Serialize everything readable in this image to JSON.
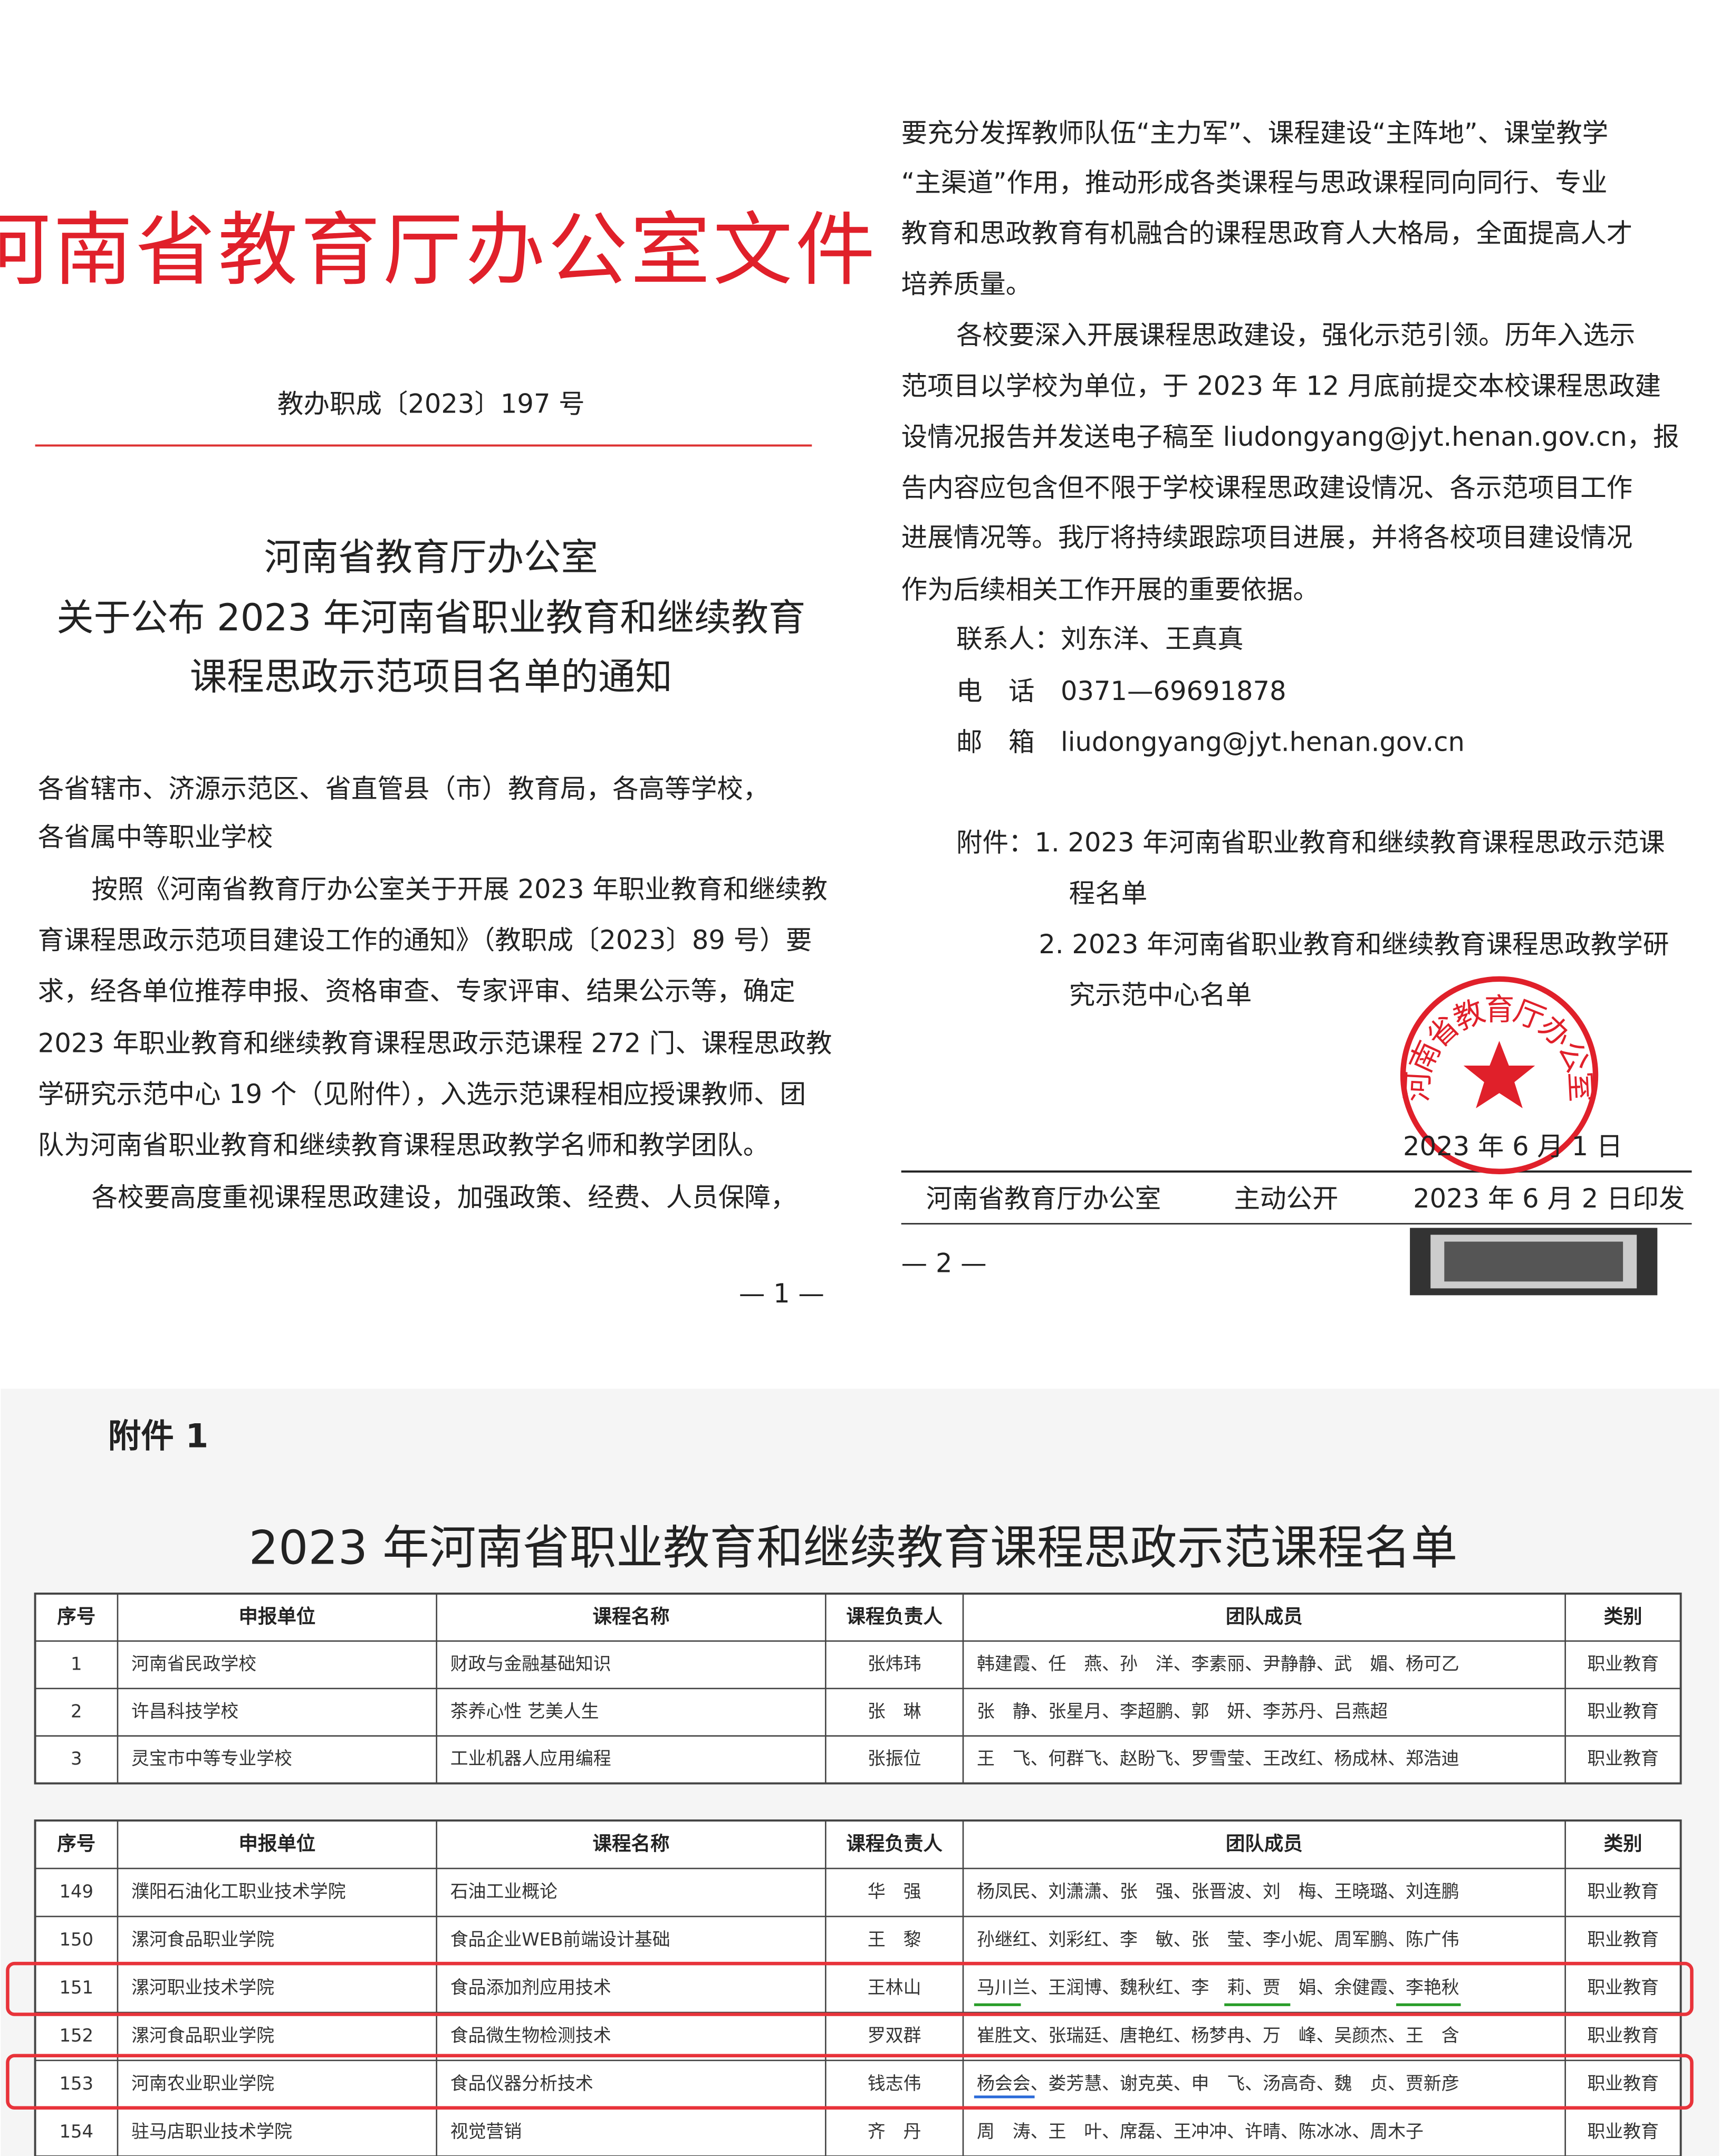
{
  "left_page": {
    "masthead": "河南省教育厅办公室文件",
    "doc_number": "教办职成〔2023〕197 号",
    "title": [
      "河南省教育厅办公室",
      "关于公布 2023 年河南省职业教育和继续教育",
      "课程思政示范项目名单的通知"
    ],
    "body": [
      "各省辖市、济源示范区、省直管县（市）教育局，各高等学校，",
      "各省属中等职业学校",
      "按照《河南省教育厅办公室关于开展 2023 年职业教育和继续教",
      "育课程思政示范项目建设工作的通知》（教职成〔2023〕89 号）要",
      "求，经各单位推荐申报、资格审查、专家评审、结果公示等，确定",
      "2023 年职业教育和继续教育课程思政示范课程 272 门、课程思政教",
      "学研究示范中心 19 个（见附件），入选示范课程相应授课教师、团",
      "队为河南省职业教育和继续教育课程思政教学名师和教学团队。",
      "各校要高度重视课程思政建设，加强政策、经费、人员保障，"
    ],
    "page_number": "— 1 —"
  },
  "right_page": {
    "body": [
      "要充分发挥教师队伍“主力军”、课程建设“主阵地”、课堂教学",
      "“主渠道”作用，推动形成各类课程与思政课程同向同行、专业",
      "教育和思政教育有机融合的课程思政育人大格局，全面提高人才",
      "培养质量。",
      "各校要深入开展课程思政建设，强化示范引领。历年入选示",
      "范项目以学校为单位，于 2023 年 12 月底前提交本校课程思政建",
      "设情况报告并发送电子稿至 liudongyang@jyt.henan.gov.cn，报",
      "告内容应包含但不限于学校课程思政建设情况、各示范项目工作",
      "进展情况等。我厅将持续跟踪项目进展，并将各校项目建设情况",
      "作为后续相关工作开展的重要依据。"
    ],
    "contact": [
      "联系人：刘东洋、王真真",
      "电　话　0371—69691878",
      "邮　箱　liudongyang@jyt.henan.gov.cn"
    ],
    "attachments": [
      "附件：1. 2023 年河南省职业教育和继续教育课程思政示范课",
      "程名单",
      "2. 2023 年河南省职业教育和继续教育课程思政教学研",
      "究示范中心名单"
    ],
    "seal_text": "河南省教育厅办公室",
    "date": "2023 年 6 月 1 日",
    "footer": [
      "河南省教育厅办公室",
      "主动公开",
      "2023 年 6 月 2 日印发"
    ],
    "page_number": "— 2 —"
  },
  "attachment": {
    "label": "附件 1",
    "title": "2023 年河南省职业教育和继续教育课程思政示范课程名单",
    "header": [
      "序号",
      "申报单位",
      "课程名称",
      "课程负责人",
      "团队成员",
      "类别"
    ],
    "rows": [
      [
        "1",
        "河南省民政学校",
        "财政与金融基础知识",
        "张炜玮",
        "韩建霞、任　燕、孙　洋、李素丽、尹静静、武　媚、杨可乙",
        "职业教育"
      ],
      [
        "2",
        "许昌科技学校",
        "茶养心性 艺美人生",
        "张　琳",
        "张　静、张星月、李超鹏、郭　妍、李苏丹、吕燕超",
        "职业教育"
      ],
      [
        "3",
        "灵宝市中等专业学校",
        "工业机器人应用编程",
        "张振位",
        "王　飞、何群飞、赵盼飞、罗雪莹、王改红、杨成林、郑浩迪",
        "职业教育"
      ]
    ],
    "header2": [
      "序号",
      "申报单位",
      "课程名称",
      "课程负责人",
      "团队成员",
      "类别"
    ],
    "rows2": [
      [
        "149",
        "濮阳石油化工职业技术学院",
        "石油工业概论",
        "华　强",
        "杨凤民、刘潇潇、张　强、张晋波、刘　梅、王晓璐、刘连鹏",
        "职业教育"
      ],
      [
        "150",
        "漯河食品职业学院",
        "食品企业WEB前端设计基础",
        "王　黎",
        "孙继红、刘彩红、李　敏、张　莹、李小妮、周军鹏、陈广伟",
        "职业教育"
      ],
      [
        "151",
        "漯河职业技术学院",
        "食品添加剂应用技术",
        "王林山",
        "马川兰、王润博、魏秋红、李　莉、贾　娟、余健霞、李艳秋",
        "职业教育"
      ],
      [
        "152",
        "漯河食品职业学院",
        "食品微生物检测技术",
        "罗双群",
        "崔胜文、张瑞廷、唐艳红、杨梦冉、万　峰、吴颜杰、王　含",
        "职业教育"
      ],
      [
        "153",
        "河南农业职业学院",
        "食品仪器分析技术",
        "钱志伟",
        "杨会会、娄芳慧、谢克英、申　飞、汤高奇、魏　贞、贾新彦",
        "职业教育"
      ],
      [
        "154",
        "驻马店职业技术学院",
        "视觉营销",
        "齐　丹",
        "周　涛、王　叶、席磊、王冲冲、许晴、陈冰冰、周木子",
        "职业教育"
      ]
    ]
  }
}
